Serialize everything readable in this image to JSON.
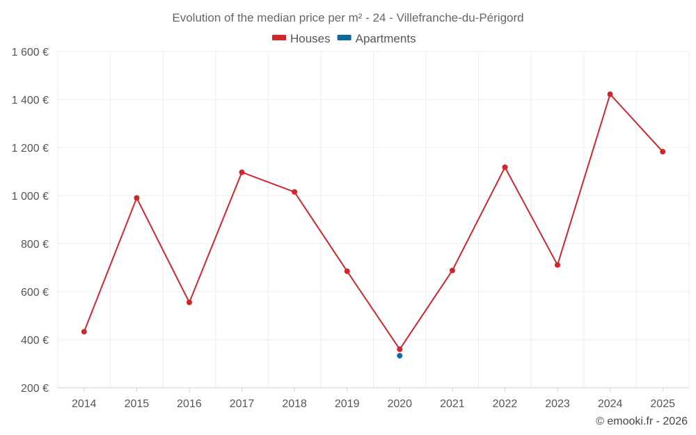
{
  "chart_data": {
    "type": "line",
    "title": "Evolution of the median price per m² - 24 - Villefranche-du-Périgord",
    "xlabel": "",
    "ylabel": "",
    "x": [
      "2014",
      "2015",
      "2016",
      "2017",
      "2018",
      "2019",
      "2020",
      "2021",
      "2022",
      "2023",
      "2024",
      "2025"
    ],
    "ylim": [
      200,
      1600
    ],
    "yticks": [
      {
        "value": 200,
        "label": "200 €"
      },
      {
        "value": 400,
        "label": "400 €"
      },
      {
        "value": 600,
        "label": "600 €"
      },
      {
        "value": 800,
        "label": "800 €"
      },
      {
        "value": 1000,
        "label": "1 000 €"
      },
      {
        "value": 1200,
        "label": "1 200 €"
      },
      {
        "value": 1400,
        "label": "1 400 €"
      },
      {
        "value": 1600,
        "label": "1 600 €"
      }
    ],
    "grid": true,
    "legend_position": "top-center",
    "series": [
      {
        "name": "Houses",
        "color": "#d0252b",
        "values": [
          433,
          990,
          555,
          1097,
          1015,
          685,
          360,
          688,
          1118,
          711,
          1422,
          1183
        ]
      },
      {
        "name": "Apartments",
        "color": "#0c6a9c",
        "values": [
          null,
          null,
          null,
          null,
          null,
          null,
          333,
          null,
          null,
          null,
          null,
          null
        ]
      }
    ]
  },
  "credit": "© emooki.fr - 2026"
}
